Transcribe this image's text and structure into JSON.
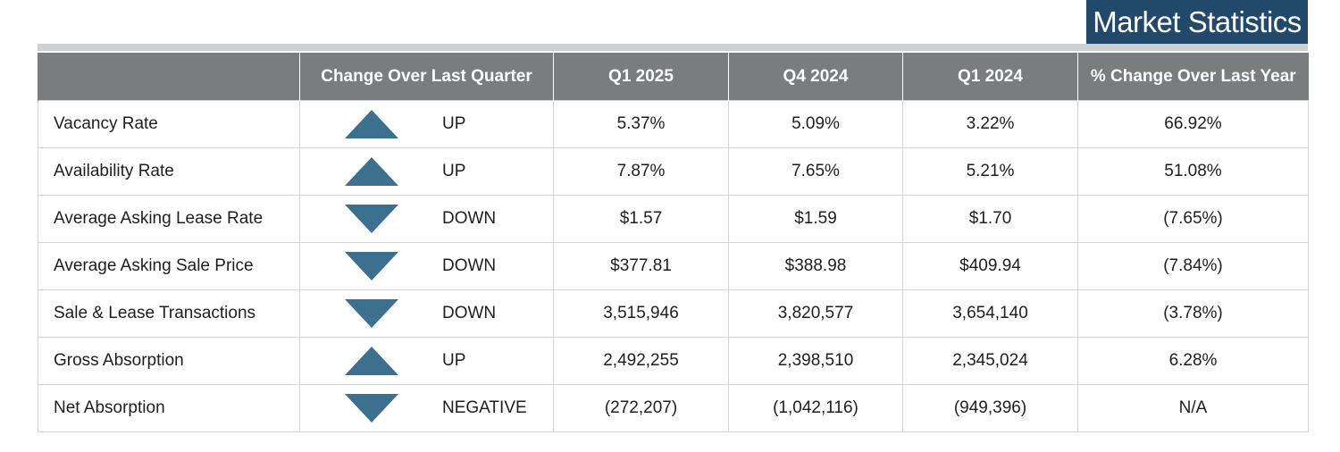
{
  "title": "Market Statistics",
  "table": {
    "headers": [
      "",
      "Change Over Last Quarter",
      "Q1 2025",
      "Q4 2024",
      "Q1 2024",
      "% Change Over Last Year"
    ],
    "rows": [
      {
        "metric": "Vacancy Rate",
        "direction": "up",
        "change": "UP",
        "q1_2025": "5.37%",
        "q4_2024": "5.09%",
        "q1_2024": "3.22%",
        "yoy": "66.92%"
      },
      {
        "metric": "Availability Rate",
        "direction": "up",
        "change": "UP",
        "q1_2025": "7.87%",
        "q4_2024": "7.65%",
        "q1_2024": "5.21%",
        "yoy": "51.08%"
      },
      {
        "metric": "Average Asking Lease Rate",
        "direction": "down",
        "change": "DOWN",
        "q1_2025": "$1.57",
        "q4_2024": "$1.59",
        "q1_2024": "$1.70",
        "yoy": "(7.65%)"
      },
      {
        "metric": "Average Asking Sale Price",
        "direction": "down",
        "change": "DOWN",
        "q1_2025": "$377.81",
        "q4_2024": "$388.98",
        "q1_2024": "$409.94",
        "yoy": "(7.84%)"
      },
      {
        "metric": "Sale & Lease Transactions",
        "direction": "down",
        "change": "DOWN",
        "q1_2025": "3,515,946",
        "q4_2024": "3,820,577",
        "q1_2024": "3,654,140",
        "yoy": "(3.78%)"
      },
      {
        "metric": "Gross Absorption",
        "direction": "up",
        "change": "UP",
        "q1_2025": "2,492,255",
        "q4_2024": "2,398,510",
        "q1_2024": "2,345,024",
        "yoy": "6.28%"
      },
      {
        "metric": "Net Absorption",
        "direction": "down",
        "change": "NEGATIVE",
        "q1_2025": "(272,207)",
        "q4_2024": "(1,042,116)",
        "q1_2024": "(949,396)",
        "yoy": "N/A"
      }
    ]
  },
  "colors": {
    "title_bg": "#22486a",
    "header_bg": "#7a7c80",
    "arrow": "#3d6f8f",
    "rule": "#cfd0d2"
  }
}
